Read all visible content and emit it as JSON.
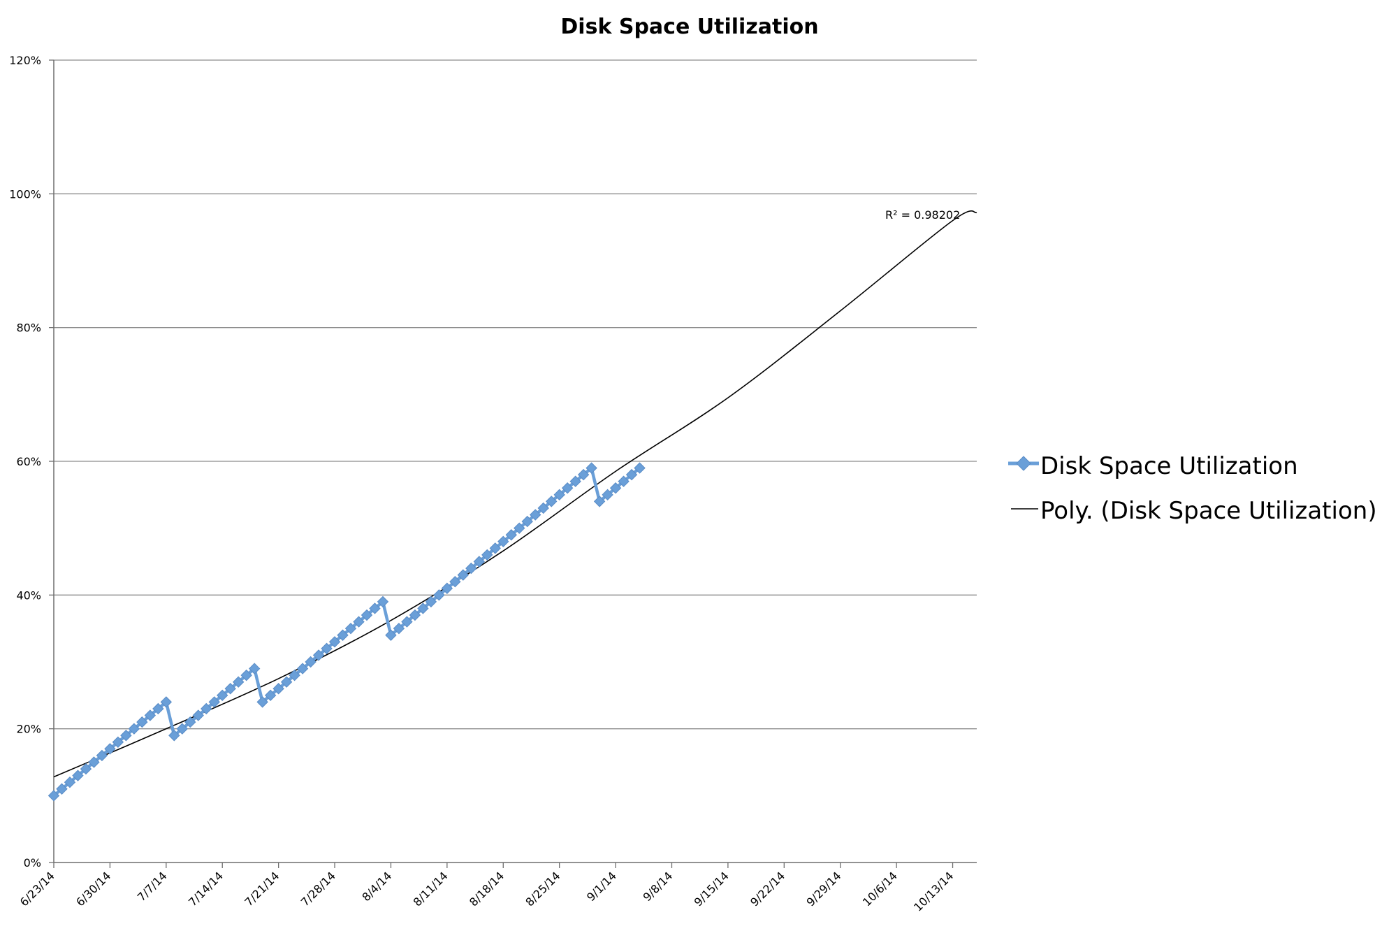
{
  "chart_data": {
    "type": "line",
    "title": "Disk Space Utilization",
    "xlabel": "",
    "ylabel": "",
    "x_axis": {
      "type": "date",
      "range": [
        "2014-06-23",
        "2014-10-16"
      ],
      "tick_dates": [
        "2014-06-23",
        "2014-06-30",
        "2014-07-07",
        "2014-07-14",
        "2014-07-21",
        "2014-07-28",
        "2014-08-04",
        "2014-08-11",
        "2014-08-18",
        "2014-08-25",
        "2014-09-01",
        "2014-09-08",
        "2014-09-15",
        "2014-09-22",
        "2014-09-29",
        "2014-10-06",
        "2014-10-13"
      ],
      "tick_labels": [
        "6/23/14",
        "6/30/14",
        "7/7/14",
        "7/14/14",
        "7/21/14",
        "7/28/14",
        "8/4/14",
        "8/11/14",
        "8/18/14",
        "8/25/14",
        "9/1/14",
        "9/8/14",
        "9/15/14",
        "9/22/14",
        "9/29/14",
        "10/6/14",
        "10/13/14"
      ]
    },
    "y_axis": {
      "range": [
        0,
        1.2
      ],
      "ticks": [
        0,
        0.2,
        0.4,
        0.6,
        0.8,
        1.0,
        1.2
      ],
      "tick_labels": [
        "0%",
        "20%",
        "40%",
        "60%",
        "80%",
        "100%",
        "120%"
      ]
    },
    "grid": true,
    "legend_position": "right",
    "series": [
      {
        "name": "Disk Space Utilization",
        "color": "#6a9fd8",
        "marker": "diamond",
        "points": [
          {
            "x": "2014-06-23",
            "y": 0.1
          },
          {
            "x": "2014-06-24",
            "y": 0.11
          },
          {
            "x": "2014-06-25",
            "y": 0.12
          },
          {
            "x": "2014-06-26",
            "y": 0.13
          },
          {
            "x": "2014-06-27",
            "y": 0.14
          },
          {
            "x": "2014-06-28",
            "y": 0.15
          },
          {
            "x": "2014-06-29",
            "y": 0.16
          },
          {
            "x": "2014-06-30",
            "y": 0.17
          },
          {
            "x": "2014-07-01",
            "y": 0.18
          },
          {
            "x": "2014-07-02",
            "y": 0.19
          },
          {
            "x": "2014-07-03",
            "y": 0.2
          },
          {
            "x": "2014-07-04",
            "y": 0.21
          },
          {
            "x": "2014-07-05",
            "y": 0.22
          },
          {
            "x": "2014-07-06",
            "y": 0.23
          },
          {
            "x": "2014-07-07",
            "y": 0.24
          },
          {
            "x": "2014-07-08",
            "y": 0.19
          },
          {
            "x": "2014-07-09",
            "y": 0.2
          },
          {
            "x": "2014-07-10",
            "y": 0.21
          },
          {
            "x": "2014-07-11",
            "y": 0.22
          },
          {
            "x": "2014-07-12",
            "y": 0.23
          },
          {
            "x": "2014-07-13",
            "y": 0.24
          },
          {
            "x": "2014-07-14",
            "y": 0.25
          },
          {
            "x": "2014-07-15",
            "y": 0.26
          },
          {
            "x": "2014-07-16",
            "y": 0.27
          },
          {
            "x": "2014-07-17",
            "y": 0.28
          },
          {
            "x": "2014-07-18",
            "y": 0.29
          },
          {
            "x": "2014-07-19",
            "y": 0.24
          },
          {
            "x": "2014-07-20",
            "y": 0.25
          },
          {
            "x": "2014-07-21",
            "y": 0.26
          },
          {
            "x": "2014-07-22",
            "y": 0.27
          },
          {
            "x": "2014-07-23",
            "y": 0.28
          },
          {
            "x": "2014-07-24",
            "y": 0.29
          },
          {
            "x": "2014-07-25",
            "y": 0.3
          },
          {
            "x": "2014-07-26",
            "y": 0.31
          },
          {
            "x": "2014-07-27",
            "y": 0.32
          },
          {
            "x": "2014-07-28",
            "y": 0.33
          },
          {
            "x": "2014-07-29",
            "y": 0.34
          },
          {
            "x": "2014-07-30",
            "y": 0.35
          },
          {
            "x": "2014-07-31",
            "y": 0.36
          },
          {
            "x": "2014-08-01",
            "y": 0.37
          },
          {
            "x": "2014-08-02",
            "y": 0.38
          },
          {
            "x": "2014-08-03",
            "y": 0.39
          },
          {
            "x": "2014-08-04",
            "y": 0.34
          },
          {
            "x": "2014-08-05",
            "y": 0.35
          },
          {
            "x": "2014-08-06",
            "y": 0.36
          },
          {
            "x": "2014-08-07",
            "y": 0.37
          },
          {
            "x": "2014-08-08",
            "y": 0.38
          },
          {
            "x": "2014-08-09",
            "y": 0.39
          },
          {
            "x": "2014-08-10",
            "y": 0.4
          },
          {
            "x": "2014-08-11",
            "y": 0.41
          },
          {
            "x": "2014-08-12",
            "y": 0.42
          },
          {
            "x": "2014-08-13",
            "y": 0.43
          },
          {
            "x": "2014-08-14",
            "y": 0.44
          },
          {
            "x": "2014-08-15",
            "y": 0.45
          },
          {
            "x": "2014-08-16",
            "y": 0.46
          },
          {
            "x": "2014-08-17",
            "y": 0.47
          },
          {
            "x": "2014-08-18",
            "y": 0.48
          },
          {
            "x": "2014-08-19",
            "y": 0.49
          },
          {
            "x": "2014-08-20",
            "y": 0.5
          },
          {
            "x": "2014-08-21",
            "y": 0.51
          },
          {
            "x": "2014-08-22",
            "y": 0.52
          },
          {
            "x": "2014-08-23",
            "y": 0.53
          },
          {
            "x": "2014-08-24",
            "y": 0.54
          },
          {
            "x": "2014-08-25",
            "y": 0.55
          },
          {
            "x": "2014-08-26",
            "y": 0.56
          },
          {
            "x": "2014-08-27",
            "y": 0.57
          },
          {
            "x": "2014-08-28",
            "y": 0.58
          },
          {
            "x": "2014-08-29",
            "y": 0.59
          },
          {
            "x": "2014-08-30",
            "y": 0.54
          },
          {
            "x": "2014-08-31",
            "y": 0.55
          },
          {
            "x": "2014-09-01",
            "y": 0.56
          },
          {
            "x": "2014-09-02",
            "y": 0.57
          },
          {
            "x": "2014-09-03",
            "y": 0.58
          },
          {
            "x": "2014-09-04",
            "y": 0.59
          }
        ]
      }
    ],
    "trendline": {
      "name": "Poly. (Disk Space Utilization)",
      "type": "polynomial",
      "order": 2,
      "color": "#000000",
      "r_squared_label": "R² = 0.98202",
      "points": [
        {
          "x": "2014-06-23",
          "y": 0.128
        },
        {
          "x": "2014-07-07",
          "y": 0.2
        },
        {
          "x": "2014-07-21",
          "y": 0.275
        },
        {
          "x": "2014-08-04",
          "y": 0.362
        },
        {
          "x": "2014-08-18",
          "y": 0.466
        },
        {
          "x": "2014-09-01",
          "y": 0.585
        },
        {
          "x": "2014-09-15",
          "y": 0.695
        },
        {
          "x": "2014-09-29",
          "y": 0.825
        },
        {
          "x": "2014-10-13",
          "y": 0.96
        },
        {
          "x": "2014-10-16",
          "y": 0.972
        }
      ]
    }
  }
}
